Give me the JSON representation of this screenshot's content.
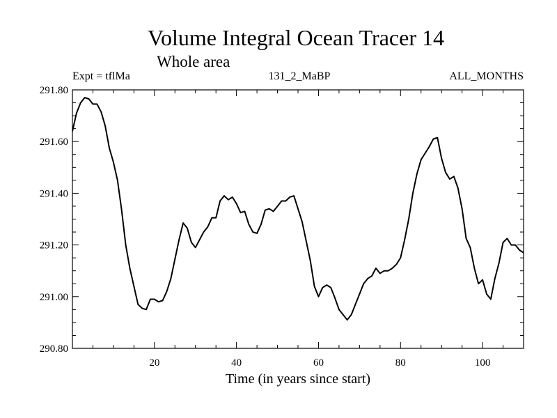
{
  "header": {
    "title": "Volume Integral Ocean Tracer 14",
    "subtitle": "Whole area",
    "expt": "Expt = tflMa",
    "run": "131_2_MaBP",
    "months": "ALL_MONTHS"
  },
  "chart_data": {
    "type": "line",
    "title": "Volume Integral Ocean Tracer 14",
    "subtitle": "Whole area",
    "xlabel": "Time (in years since start)",
    "ylabel": "",
    "xlim": [
      0,
      110
    ],
    "ylim": [
      290.8,
      291.8
    ],
    "xticks": [
      20,
      40,
      60,
      80,
      100
    ],
    "xtick_labels": [
      "20",
      "40",
      "60",
      "80",
      "100"
    ],
    "yticks": [
      290.8,
      291.0,
      291.2,
      291.4,
      291.6,
      291.8
    ],
    "ytick_labels": [
      "290.80",
      "291.00",
      "291.20",
      "291.40",
      "291.60",
      "291.80"
    ],
    "grid": false,
    "series": [
      {
        "color": "#000000",
        "x": [
          0,
          1,
          2,
          3,
          4,
          5,
          6,
          7,
          8,
          9,
          10,
          11,
          12,
          13,
          14,
          15,
          16,
          17,
          18,
          19,
          20,
          21,
          22,
          23,
          24,
          25,
          26,
          27,
          28,
          29,
          30,
          31,
          32,
          33,
          34,
          35,
          36,
          37,
          38,
          39,
          40,
          41,
          42,
          43,
          44,
          45,
          46,
          47,
          48,
          49,
          50,
          51,
          52,
          53,
          54,
          55,
          56,
          57,
          58,
          59,
          60,
          61,
          62,
          63,
          64,
          65,
          66,
          67,
          68,
          69,
          70,
          71,
          72,
          73,
          74,
          75,
          76,
          77,
          78,
          79,
          80,
          81,
          82,
          83,
          84,
          85,
          86,
          87,
          88,
          89,
          90,
          91,
          92,
          93,
          94,
          95,
          96,
          97,
          98,
          99,
          100,
          101,
          102,
          103,
          104,
          105,
          106,
          107,
          108,
          109,
          110
        ],
        "y": [
          291.64,
          291.71,
          291.75,
          291.77,
          291.765,
          291.745,
          291.745,
          291.715,
          291.66,
          291.575,
          291.52,
          291.45,
          291.335,
          291.2,
          291.11,
          291.04,
          290.97,
          290.955,
          290.95,
          290.99,
          290.99,
          290.98,
          290.985,
          291.02,
          291.07,
          291.145,
          291.22,
          291.285,
          291.265,
          291.21,
          291.19,
          291.22,
          291.25,
          291.27,
          291.305,
          291.305,
          291.37,
          291.39,
          291.375,
          291.385,
          291.36,
          291.325,
          291.33,
          291.28,
          291.25,
          291.245,
          291.28,
          291.335,
          291.34,
          291.33,
          291.35,
          291.37,
          291.37,
          291.385,
          291.39,
          291.34,
          291.29,
          291.215,
          291.14,
          291.04,
          291.0,
          291.035,
          291.045,
          291.035,
          290.995,
          290.95,
          290.93,
          290.91,
          290.93,
          290.97,
          291.01,
          291.05,
          291.07,
          291.08,
          291.11,
          291.09,
          291.1,
          291.1,
          291.11,
          291.125,
          291.15,
          291.22,
          291.3,
          291.4,
          291.475,
          291.53,
          291.555,
          291.58,
          291.61,
          291.615,
          291.535,
          291.48,
          291.455,
          291.465,
          291.42,
          291.34,
          291.225,
          291.19,
          291.11,
          291.05,
          291.065,
          291.01,
          290.99,
          291.07,
          291.13,
          291.21,
          291.225,
          291.2,
          291.2,
          291.18,
          291.17
        ]
      }
    ]
  }
}
